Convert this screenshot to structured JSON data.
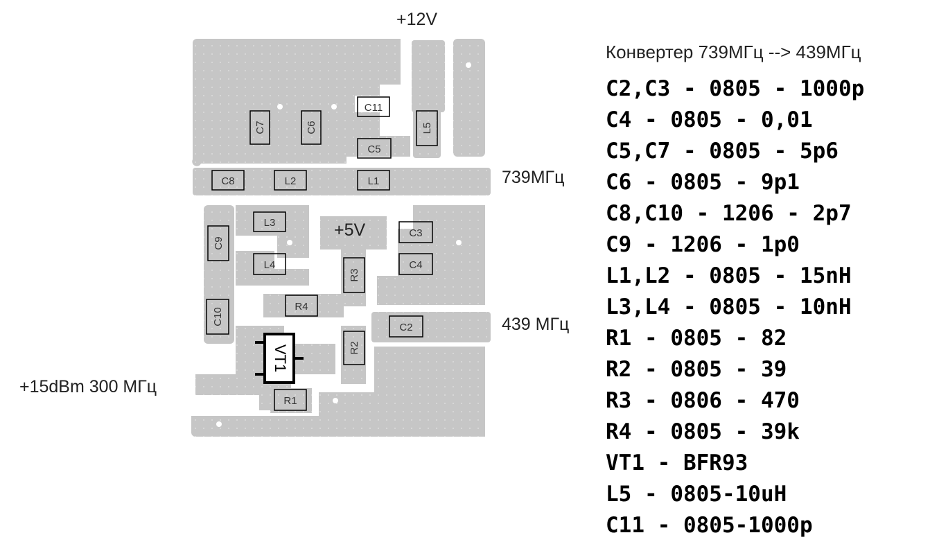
{
  "title": "Конвертер 739МГц --> 439МГц",
  "net_labels": {
    "v12": "+12V",
    "v5": "+5V",
    "out739": "739МГц",
    "if439": "439 МГц",
    "lo300": "+15dBm 300 МГц"
  },
  "components": [
    {
      "ref": "C11"
    },
    {
      "ref": "C7"
    },
    {
      "ref": "C6"
    },
    {
      "ref": "C5"
    },
    {
      "ref": "L5"
    },
    {
      "ref": "C8"
    },
    {
      "ref": "L2"
    },
    {
      "ref": "L1"
    },
    {
      "ref": "L3"
    },
    {
      "ref": "C9"
    },
    {
      "ref": "C3"
    },
    {
      "ref": "L4"
    },
    {
      "ref": "C4"
    },
    {
      "ref": "R3"
    },
    {
      "ref": "R4"
    },
    {
      "ref": "C10"
    },
    {
      "ref": "C2"
    },
    {
      "ref": "R2"
    },
    {
      "ref": "R1"
    },
    {
      "ref": "VT1"
    }
  ],
  "bom": [
    "C2,C3 - 0805 - 1000p",
    "C4 - 0805 - 0,01",
    "C5,C7 - 0805 - 5p6",
    "C6 - 0805 - 9p1",
    "C8,C10 - 1206 - 2p7",
    "C9 - 1206 - 1p0",
    "L1,L2 - 0805 - 15nH",
    "L3,L4 - 0805 - 10nH",
    "R1 - 0805 - 82",
    "R2 - 0805 - 39",
    "R3 - 0806 - 470",
    "R4 - 0805 - 39k",
    "VT1 - BFR93",
    "L5 - 0805-10uH",
    "C11 - 0805-1000p"
  ],
  "colors": {
    "copper": "#c6c6c6",
    "background": "#ffffff",
    "outline": "#000000"
  }
}
